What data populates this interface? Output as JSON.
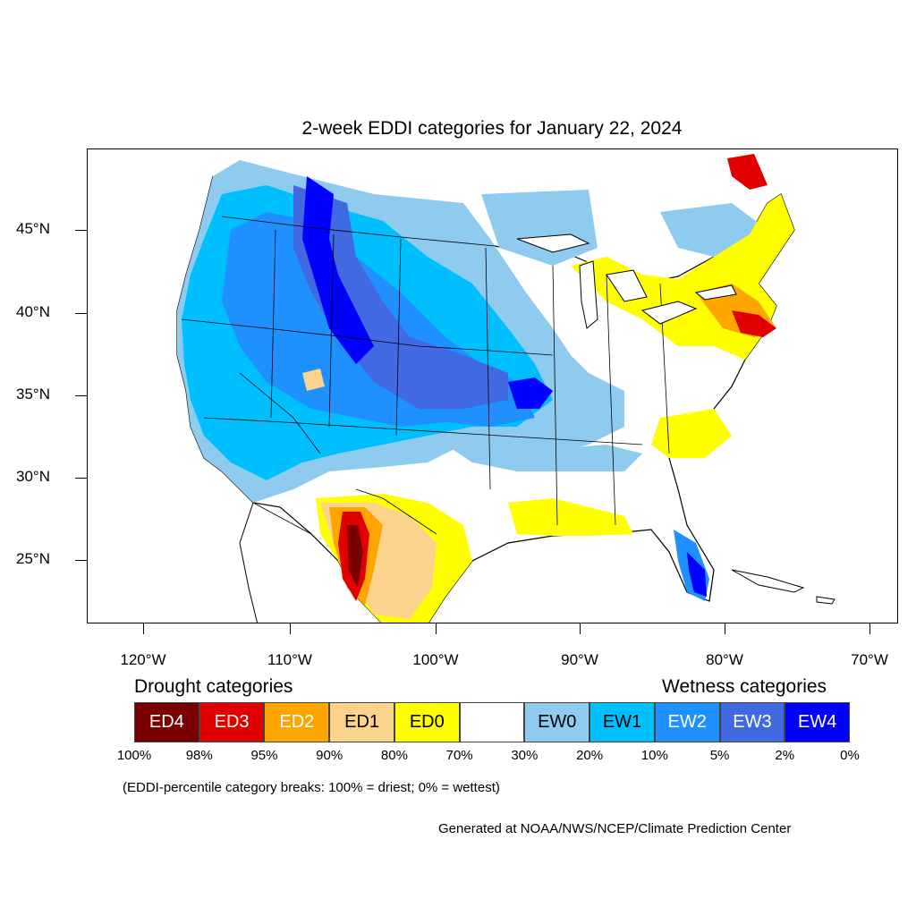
{
  "title": "2-week EDDI categories for January 22, 2024",
  "latitude_labels": [
    "45°N",
    "40°N",
    "35°N",
    "30°N",
    "25°N"
  ],
  "longitude_labels": [
    "120°W",
    "110°W",
    "100°W",
    "90°W",
    "80°W",
    "70°W"
  ],
  "legend": {
    "drought_heading": "Drought categories",
    "wetness_heading": "Wetness categories",
    "categories": [
      {
        "label": "ED4",
        "color": "#7a0000",
        "text_color": "#ffffff"
      },
      {
        "label": "ED3",
        "color": "#e00000",
        "text_color": "#ffffff"
      },
      {
        "label": "ED2",
        "color": "#ffa500",
        "text_color": "#ffffff"
      },
      {
        "label": "ED1",
        "color": "#fcd38d",
        "text_color": "#000000"
      },
      {
        "label": "ED0",
        "color": "#ffff00",
        "text_color": "#000000"
      },
      {
        "label": "",
        "color": "#ffffff",
        "text_color": "#000000"
      },
      {
        "label": "EW0",
        "color": "#8ecbef",
        "text_color": "#000000"
      },
      {
        "label": "EW1",
        "color": "#00bfff",
        "text_color": "#000000"
      },
      {
        "label": "EW2",
        "color": "#1e90ff",
        "text_color": "#ffffff"
      },
      {
        "label": "EW3",
        "color": "#4169e1",
        "text_color": "#ffffff"
      },
      {
        "label": "EW4",
        "color": "#0000ff",
        "text_color": "#ffffff"
      }
    ],
    "percent_breaks": [
      "100%",
      "98%",
      "95%",
      "90%",
      "80%",
      "70%",
      "30%",
      "20%",
      "10%",
      "5%",
      "2%",
      "0%"
    ]
  },
  "note": "(EDDI-percentile category breaks: 100% = driest; 0% = wettest)",
  "credit": "Generated at NOAA/NWS/NCEP/Climate Prediction Center"
}
